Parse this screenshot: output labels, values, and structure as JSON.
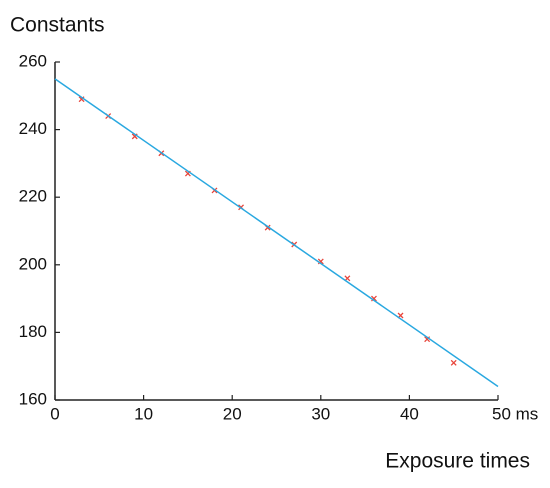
{
  "chart_data": {
    "type": "scatter",
    "title": "Constants",
    "x_label": "Exposure  times",
    "xlim": [
      0,
      50
    ],
    "ylim": [
      160,
      260
    ],
    "xticks": [
      0,
      10,
      20,
      30,
      40,
      {
        "value": 50,
        "label": "50 ms"
      }
    ],
    "yticks": [
      160,
      180,
      200,
      220,
      240,
      260
    ],
    "grid": false,
    "series": [
      {
        "type": "scatter",
        "color": "#e8443a",
        "x": [
          3,
          6,
          9,
          12,
          15,
          18,
          21,
          24,
          27,
          30,
          33,
          36,
          39,
          42,
          45
        ],
        "values": [
          249,
          244,
          238,
          233,
          227,
          222,
          217,
          211,
          206,
          201,
          196,
          190,
          185,
          178,
          171
        ]
      },
      {
        "type": "line",
        "color": "#29a8e0",
        "x": [
          0,
          50
        ],
        "values": [
          255,
          164
        ]
      }
    ]
  }
}
